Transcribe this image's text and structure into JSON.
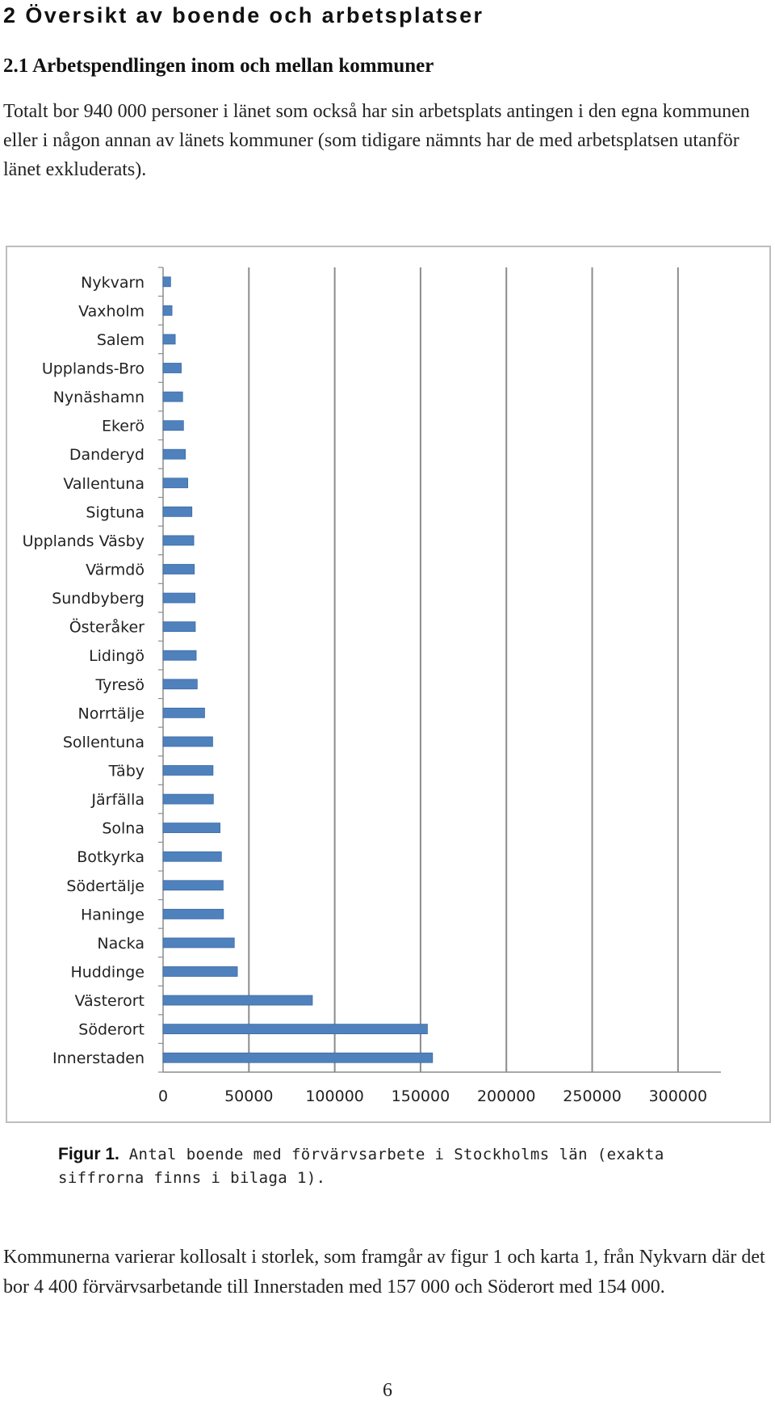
{
  "heading": "2 Översikt av boende och arbetsplatser",
  "subheading": "2.1 Arbetspendlingen inom och mellan kommuner",
  "intro": "Totalt bor 940 000 personer i länet som också har sin arbetsplats antingen i den egna kommunen eller i någon annan av länets kommuner (som tidigare nämnts har de med arbetsplatsen utanför länet exkluderats).",
  "figure": {
    "label": "Figur 1.",
    "caption": "Antal boende med förvärvsarbete i Stockholms län (exakta siffrorna finns i bilaga 1)."
  },
  "chart_data": {
    "type": "bar",
    "orientation": "horizontal",
    "title": "",
    "xlabel": "",
    "ylabel": "",
    "xlim": [
      0,
      325000
    ],
    "xticks": [
      0,
      50000,
      100000,
      150000,
      200000,
      250000,
      300000
    ],
    "vertical_gridlines": true,
    "legend": "none",
    "bar_color": "#4f81bd",
    "categories": [
      "Nykvarn",
      "Vaxholm",
      "Salem",
      "Upplands-Bro",
      "Nynäshamn",
      "Ekerö",
      "Danderyd",
      "Vallentuna",
      "Sigtuna",
      "Upplands Väsby",
      "Värmdö",
      "Sundbyberg",
      "Österåker",
      "Lidingö",
      "Tyresö",
      "Norrtälje",
      "Sollentuna",
      "Täby",
      "Järfälla",
      "Solna",
      "Botkyrka",
      "Södertälje",
      "Haninge",
      "Nacka",
      "Huddinge",
      "Västerort",
      "Söderort",
      "Innerstaden"
    ],
    "values": [
      4400,
      5200,
      7100,
      10600,
      11400,
      11900,
      13000,
      14400,
      16800,
      17900,
      18200,
      18600,
      18800,
      19300,
      19900,
      24200,
      28900,
      29100,
      29300,
      33200,
      34000,
      35000,
      35200,
      41500,
      43300,
      87000,
      154000,
      157000
    ]
  },
  "body": "Kommunerna varierar kollosalt i storlek, som framgår av figur 1 och karta 1, från Nykvarn där det bor 4 400 förvärvsarbetande till Innerstaden med 157 000 och Söderort med 154 000.",
  "page_number": "6"
}
